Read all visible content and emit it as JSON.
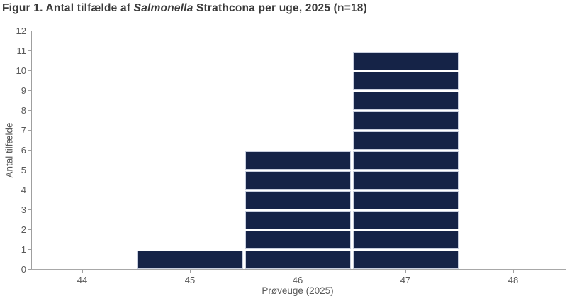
{
  "figure": {
    "title_prefix": "Figur 1. Antal tilfælde af ",
    "title_italic": "Salmonella",
    "title_suffix": " Strathcona per uge, 2025 (n=18)"
  },
  "chart_data": {
    "type": "bar",
    "variant": "epicurve-stacked-unit-boxes",
    "title": "Figur 1. Antal tilfælde af Salmonella Strathcona per uge, 2025 (n=18)",
    "xlabel": "Prøveuge (2025)",
    "ylabel": "Antal tilfælde",
    "n_total": 18,
    "categories": [
      44,
      45,
      46,
      47,
      48
    ],
    "values": [
      0,
      1,
      6,
      11,
      0
    ],
    "yticks": [
      0,
      1,
      2,
      3,
      4,
      5,
      6,
      7,
      8,
      9,
      10,
      11,
      12
    ],
    "ylim": [
      0,
      12
    ],
    "xlim": [
      43.5,
      48.5
    ],
    "grid": false,
    "legend": false,
    "colors": {
      "bar_fill": "#152347",
      "bar_border": "#c9cfdf",
      "bar_gap": "#ffffff",
      "axis_line": "#a8a8a8",
      "tick_label": "#595959",
      "title_text": "#3b3b3b"
    }
  }
}
